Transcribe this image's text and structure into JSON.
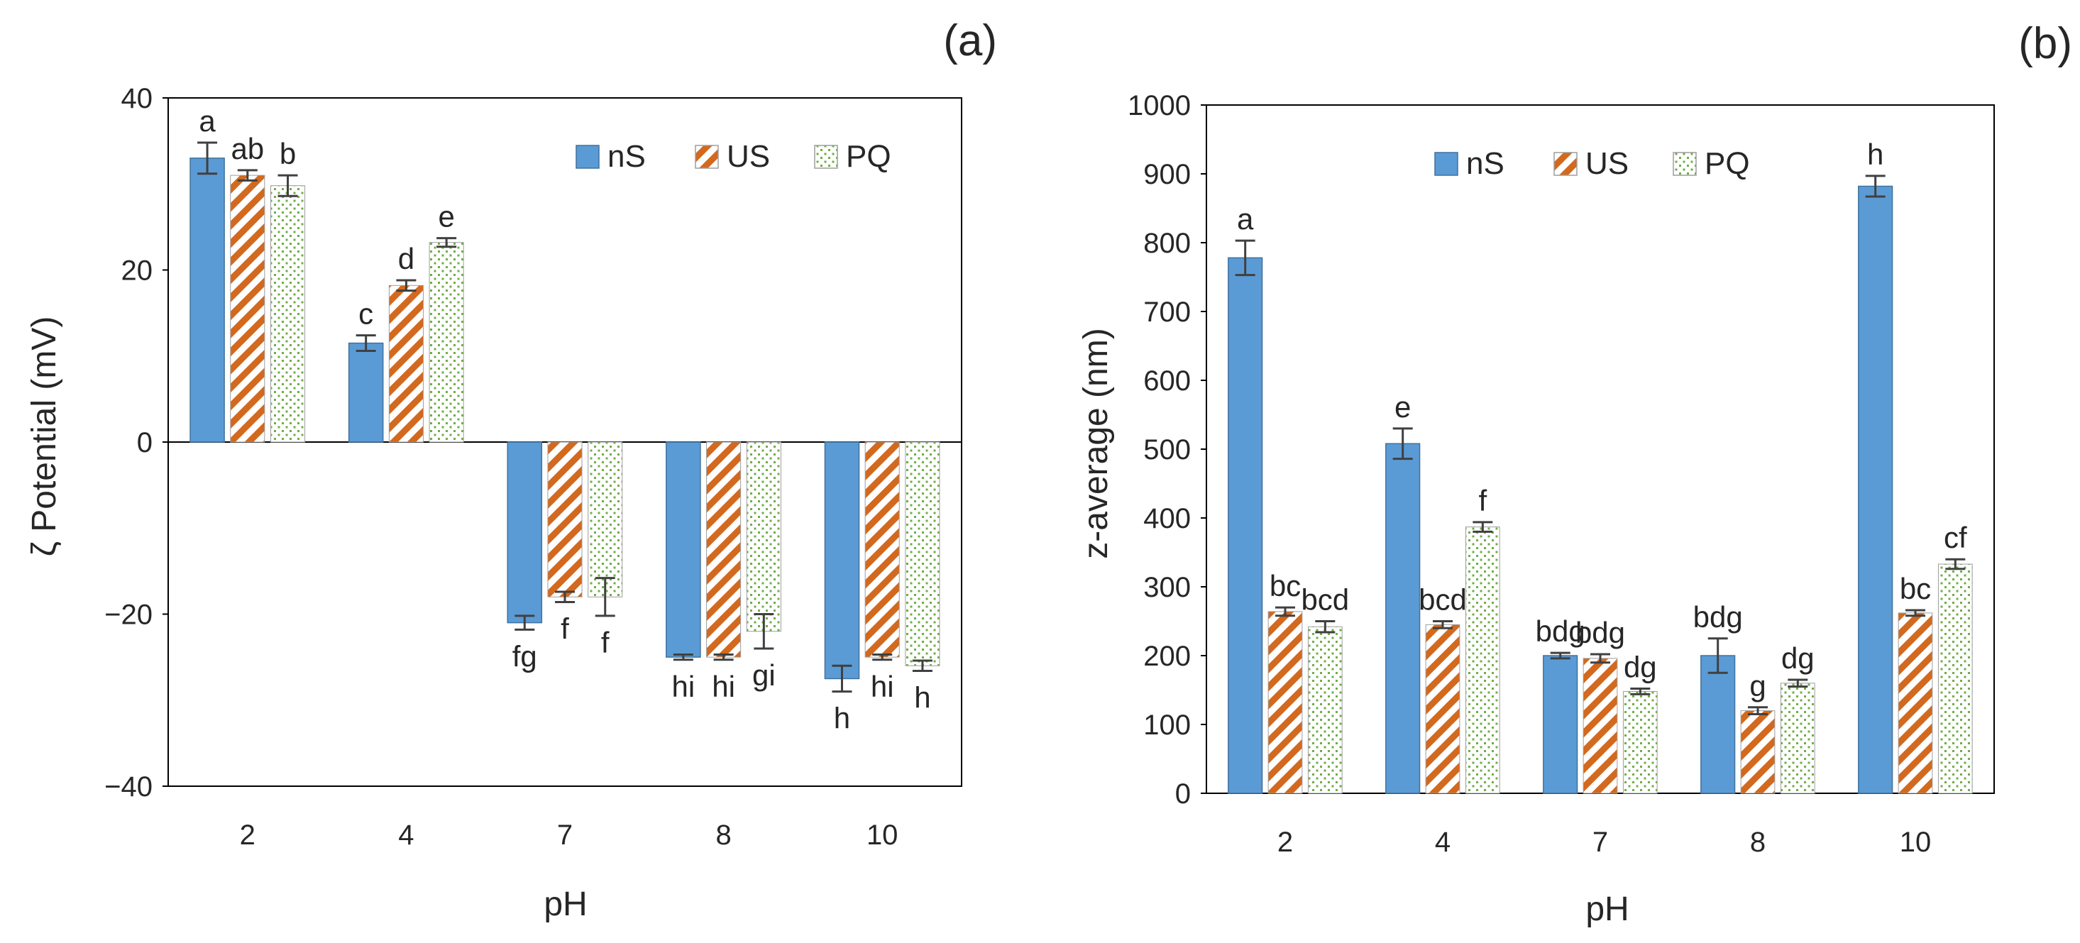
{
  "chart_data": [
    {
      "type": "bar",
      "panel_label": "(a)",
      "xlabel": "pH",
      "ylabel": "ζ Potential (mV)",
      "ylim": [
        -40,
        40
      ],
      "yticks": [
        -40,
        -20,
        0,
        20,
        40
      ],
      "categories": [
        "2",
        "4",
        "7",
        "8",
        "10"
      ],
      "legend_position": "top-right",
      "series": [
        {
          "name": "nS",
          "values": [
            33,
            11.5,
            -21,
            -25,
            -27.5
          ],
          "errors": [
            1.8,
            0.9,
            0.8,
            0.3,
            1.5
          ],
          "letters": [
            "a",
            "c",
            "fg",
            "hi",
            "h"
          ]
        },
        {
          "name": "US",
          "values": [
            31,
            18.2,
            -18,
            -25,
            -25
          ],
          "errors": [
            0.6,
            0.6,
            0.6,
            0.3,
            0.3
          ],
          "letters": [
            "ab",
            "d",
            "f",
            "hi",
            "hi"
          ]
        },
        {
          "name": "PQ",
          "values": [
            29.8,
            23.2,
            -18,
            -22,
            -26
          ],
          "errors": [
            1.2,
            0.5,
            2.2,
            2.0,
            0.6
          ],
          "letters": [
            "b",
            "e",
            "f",
            "gi",
            "h"
          ]
        }
      ]
    },
    {
      "type": "bar",
      "panel_label": "(b)",
      "xlabel": "pH",
      "ylabel": "z-average (nm)",
      "ylim": [
        0,
        1000
      ],
      "yticks": [
        0,
        100,
        200,
        300,
        400,
        500,
        600,
        700,
        800,
        900,
        1000
      ],
      "categories": [
        "2",
        "4",
        "7",
        "8",
        "10"
      ],
      "legend_position": "top-center",
      "series": [
        {
          "name": "nS",
          "values": [
            778,
            508,
            200,
            200,
            882
          ],
          "errors": [
            25,
            22,
            4,
            25,
            15
          ],
          "letters": [
            "a",
            "e",
            "bdg",
            "bdg",
            "h"
          ]
        },
        {
          "name": "US",
          "values": [
            264,
            245,
            196,
            120,
            262
          ],
          "errors": [
            6,
            5,
            6,
            5,
            4
          ],
          "letters": [
            "bc",
            "bcd",
            "bdg",
            "g",
            "bc"
          ]
        },
        {
          "name": "PQ",
          "values": [
            242,
            387,
            148,
            160,
            333
          ],
          "errors": [
            8,
            7,
            4,
            5,
            7
          ],
          "letters": [
            "bcd",
            "f",
            "dg",
            "dg",
            "cf"
          ]
        }
      ]
    }
  ]
}
